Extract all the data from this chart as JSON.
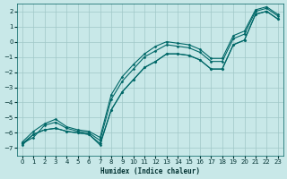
{
  "xlabel": "Humidex (Indice chaleur)",
  "ylabel": "",
  "bg_color": "#c8e8e8",
  "grid_color": "#a0c8c8",
  "line_color": "#006868",
  "xlim": [
    -0.5,
    23.5
  ],
  "ylim": [
    -7.5,
    2.5
  ],
  "xticks": [
    0,
    1,
    2,
    3,
    4,
    5,
    6,
    7,
    8,
    9,
    10,
    11,
    12,
    13,
    14,
    15,
    16,
    17,
    18,
    19,
    20,
    21,
    22,
    23
  ],
  "yticks": [
    -7,
    -6,
    -5,
    -4,
    -3,
    -2,
    -1,
    0,
    1,
    2
  ],
  "lines": [
    [
      0,
      -6.7,
      1,
      -6.1,
      2,
      -5.8,
      3,
      -5.7,
      4,
      -5.9,
      5,
      -6.0,
      6,
      -6.1,
      7,
      -6.7,
      8,
      -4.5,
      9,
      -3.3,
      10,
      -2.5,
      11,
      -1.7,
      12,
      -1.3,
      13,
      -0.8,
      14,
      -0.8,
      15,
      -0.9,
      16,
      -1.2,
      17,
      -1.8,
      18,
      -1.8,
      19,
      -0.2,
      20,
      0.1,
      21,
      1.8,
      22,
      2.0,
      23,
      1.5
    ],
    [
      0,
      -6.7,
      1,
      -6.3,
      2,
      -5.5,
      3,
      -5.3,
      4,
      -5.7,
      5,
      -5.9,
      6,
      -6.0,
      7,
      -6.5,
      8,
      -3.8,
      9,
      -2.6,
      10,
      -1.8,
      11,
      -1.0,
      12,
      -0.6,
      13,
      -0.2,
      14,
      -0.3,
      15,
      -0.4,
      16,
      -0.7,
      17,
      -1.3,
      18,
      -1.3,
      19,
      0.2,
      20,
      0.5,
      21,
      2.0,
      22,
      2.2,
      23,
      1.7
    ],
    [
      0,
      -6.8,
      1,
      -6.1,
      2,
      -5.8,
      3,
      -5.7,
      4,
      -5.9,
      5,
      -6.0,
      6,
      -6.1,
      7,
      -6.8,
      8,
      -4.5,
      9,
      -3.3,
      10,
      -2.5,
      11,
      -1.7,
      12,
      -1.3,
      13,
      -0.8,
      14,
      -0.8,
      15,
      -0.9,
      16,
      -1.2,
      17,
      -1.8,
      18,
      -1.8,
      19,
      -0.2,
      20,
      0.1,
      21,
      1.8,
      22,
      2.0,
      23,
      1.5
    ],
    [
      0,
      -6.6,
      1,
      -5.9,
      2,
      -5.4,
      3,
      -5.1,
      4,
      -5.6,
      5,
      -5.8,
      6,
      -5.9,
      7,
      -6.3,
      8,
      -3.5,
      9,
      -2.3,
      10,
      -1.5,
      11,
      -0.8,
      12,
      -0.3,
      13,
      0.0,
      14,
      -0.1,
      15,
      -0.2,
      16,
      -0.5,
      17,
      -1.1,
      18,
      -1.1,
      19,
      0.4,
      20,
      0.7,
      21,
      2.1,
      22,
      2.3,
      23,
      1.8
    ]
  ]
}
